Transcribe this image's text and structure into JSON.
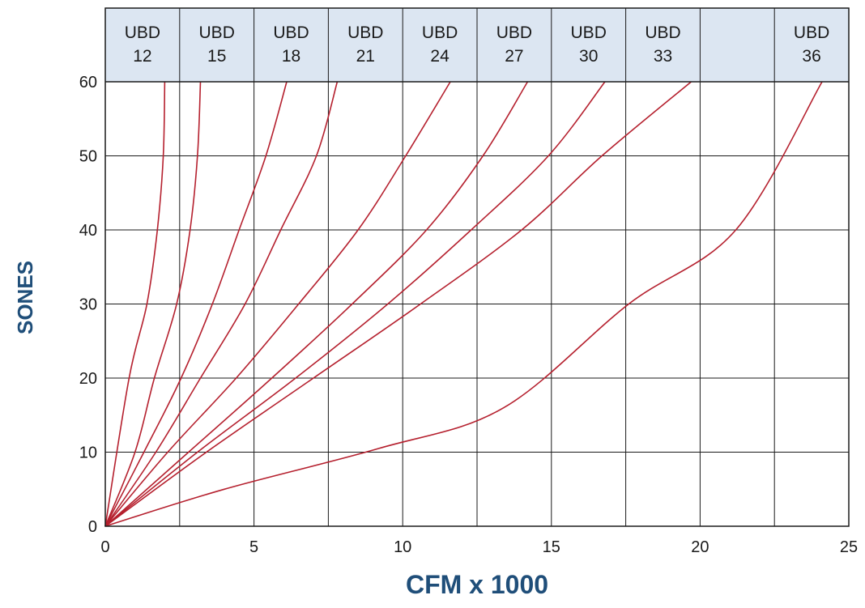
{
  "chart_data": {
    "type": "line",
    "title": "",
    "xlabel": "CFM x 1000",
    "ylabel": "SONES",
    "xlim": [
      0,
      25
    ],
    "ylim": [
      0,
      60
    ],
    "x_ticks": [
      0,
      5,
      10,
      15,
      20,
      25
    ],
    "y_ticks": [
      0,
      10,
      20,
      30,
      40,
      50,
      60
    ],
    "grid": true,
    "colors": {
      "line": "#b5202e",
      "header_band": "#dce6f2",
      "axis_label": "#1f4e79",
      "grid": "#1a1a1a"
    },
    "header_cells": [
      [
        "UBD",
        "12"
      ],
      [
        "UBD",
        "15"
      ],
      [
        "UBD",
        "18"
      ],
      [
        "UBD",
        "21"
      ],
      [
        "UBD",
        "24"
      ],
      [
        "UBD",
        "27"
      ],
      [
        "UBD",
        "30"
      ],
      [
        "UBD",
        "33"
      ],
      [
        "",
        ""
      ],
      [
        "UBD",
        "36"
      ]
    ],
    "series": [
      {
        "name": "UBD 12",
        "points": [
          [
            0,
            0
          ],
          [
            0.8,
            20
          ],
          [
            1.4,
            30
          ],
          [
            1.75,
            40
          ],
          [
            1.95,
            50
          ],
          [
            2.0,
            60
          ]
        ]
      },
      {
        "name": "UBD 15",
        "points": [
          [
            0,
            0
          ],
          [
            1.0,
            10
          ],
          [
            1.65,
            20
          ],
          [
            2.4,
            30
          ],
          [
            2.85,
            40
          ],
          [
            3.1,
            50
          ],
          [
            3.2,
            60
          ]
        ]
      },
      {
        "name": "UBD 18",
        "points": [
          [
            0,
            0
          ],
          [
            1.3,
            10
          ],
          [
            2.55,
            20
          ],
          [
            3.6,
            30
          ],
          [
            4.5,
            40
          ],
          [
            5.4,
            50
          ],
          [
            6.1,
            60
          ]
        ]
      },
      {
        "name": "UBD 21",
        "points": [
          [
            0,
            0
          ],
          [
            1.7,
            10
          ],
          [
            3.2,
            20
          ],
          [
            4.7,
            30
          ],
          [
            5.9,
            40
          ],
          [
            7.1,
            50
          ],
          [
            7.8,
            60
          ]
        ]
      },
      {
        "name": "UBD 24",
        "points": [
          [
            0,
            0
          ],
          [
            2.1,
            10
          ],
          [
            4.4,
            20
          ],
          [
            6.5,
            30
          ],
          [
            8.5,
            40
          ],
          [
            10.1,
            50
          ],
          [
            11.6,
            60
          ]
        ]
      },
      {
        "name": "UBD 27",
        "points": [
          [
            0,
            0
          ],
          [
            2.8,
            10
          ],
          [
            5.6,
            20
          ],
          [
            8.3,
            30
          ],
          [
            10.8,
            40
          ],
          [
            12.7,
            50
          ],
          [
            14.2,
            60
          ]
        ]
      },
      {
        "name": "UBD 30",
        "points": [
          [
            0,
            0
          ],
          [
            3.1,
            10
          ],
          [
            6.4,
            20
          ],
          [
            9.5,
            30
          ],
          [
            12.3,
            40
          ],
          [
            14.9,
            50
          ],
          [
            16.8,
            60
          ]
        ]
      },
      {
        "name": "UBD 33",
        "points": [
          [
            0,
            0
          ],
          [
            3.4,
            10
          ],
          [
            7.0,
            20
          ],
          [
            10.6,
            30
          ],
          [
            14.0,
            40
          ],
          [
            16.7,
            50
          ],
          [
            19.7,
            60
          ]
        ]
      },
      {
        "name": "UBD 36",
        "points": [
          [
            0,
            0
          ],
          [
            4.0,
            5
          ],
          [
            9.2,
            10.5
          ],
          [
            13.4,
            16
          ],
          [
            17.6,
            30
          ],
          [
            21.2,
            40
          ],
          [
            24.1,
            60
          ]
        ]
      }
    ]
  }
}
